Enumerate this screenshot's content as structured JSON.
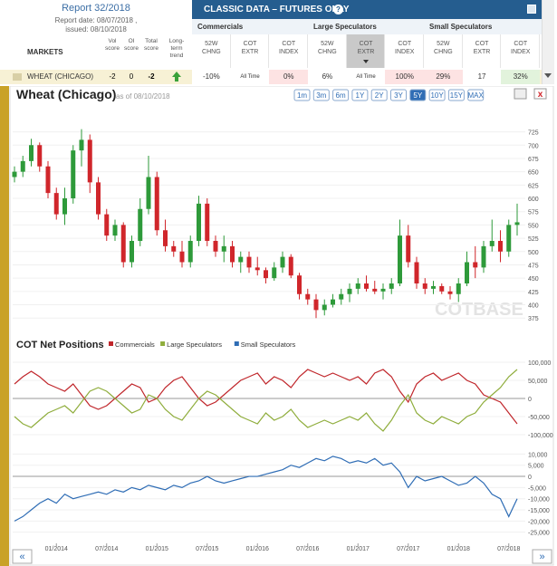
{
  "header": {
    "report": "Report 32/2018",
    "report_date": "Report date: 08/07/2018 ,",
    "issued": "issued: 08/10/2018",
    "markets": "MARKETS",
    "columns": [
      "Vol score",
      "OI score",
      "Total score",
      "Long-term trend"
    ],
    "title": "CLASSIC DATA – FUTURES ONLY",
    "groups": [
      "Commercials",
      "Large Speculators",
      "Small Speculators"
    ],
    "group_columns": [
      "52W CHNG",
      "COT EXTR",
      "COT INDEX"
    ],
    "sorted_column": 4
  },
  "row": {
    "market": "WHEAT (CHICAGO)",
    "scores": [
      -2,
      0,
      -2
    ],
    "cells": [
      "-10%",
      "All Time",
      "0%",
      "6%",
      "All Time",
      "100%",
      "29%",
      "17",
      "32%"
    ],
    "cell_colors": [
      "#ffffff",
      "#ffffff",
      "#fde3e3",
      "#ffffff",
      "#ffffff",
      "#fde3e3",
      "#fde3e3",
      "#ffffff",
      "#e2f3dc"
    ]
  },
  "panel": {
    "title": "Wheat (Chicago)",
    "as_of": "as of 08/10/2018",
    "ranges": [
      "1m",
      "3m",
      "6m",
      "1Y",
      "2Y",
      "3Y",
      "5Y",
      "10Y",
      "15Y",
      "MAX"
    ],
    "selected": 6,
    "watermark": "COTBASE",
    "nav": [
      "«",
      "»"
    ]
  },
  "chart_data": [
    {
      "type": "candlestick",
      "up_color": "#2e9a3a",
      "down_color": "#d0262b",
      "grid": true,
      "x": [
        "08/2013",
        "09/2013",
        "10/2013",
        "11/2013",
        "12/2013",
        "01/2014",
        "02/2014",
        "03/2014",
        "04/2014",
        "05/2014",
        "06/2014",
        "07/2014",
        "08/2014",
        "09/2014",
        "10/2014",
        "11/2014",
        "12/2014",
        "01/2015",
        "02/2015",
        "03/2015",
        "04/2015",
        "05/2015",
        "06/2015",
        "07/2015",
        "08/2015",
        "09/2015",
        "10/2015",
        "11/2015",
        "12/2015",
        "01/2016",
        "02/2016",
        "03/2016",
        "04/2016",
        "05/2016",
        "06/2016",
        "07/2016",
        "08/2016",
        "09/2016",
        "10/2016",
        "11/2016",
        "12/2016",
        "01/2017",
        "02/2017",
        "03/2017",
        "04/2017",
        "05/2017",
        "06/2017",
        "07/2017",
        "08/2017",
        "09/2017",
        "10/2017",
        "11/2017",
        "12/2017",
        "01/2018",
        "02/2018",
        "03/2018",
        "04/2018",
        "05/2018",
        "06/2018",
        "07/2018",
        "08/2018"
      ],
      "open": [
        640,
        650,
        670,
        700,
        660,
        610,
        570,
        600,
        690,
        710,
        630,
        570,
        530,
        550,
        480,
        520,
        580,
        640,
        540,
        510,
        500,
        480,
        520,
        590,
        520,
        500,
        510,
        480,
        490,
        470,
        465,
        450,
        470,
        490,
        455,
        420,
        410,
        390,
        400,
        410,
        420,
        430,
        440,
        430,
        425,
        430,
        440,
        530,
        480,
        440,
        430,
        435,
        425,
        420,
        440,
        480,
        470,
        510,
        520,
        500,
        550
      ],
      "high": [
        660,
        680,
        712,
        705,
        670,
        620,
        620,
        700,
        730,
        720,
        640,
        580,
        560,
        555,
        530,
        600,
        680,
        650,
        560,
        520,
        520,
        530,
        605,
        600,
        530,
        530,
        520,
        500,
        500,
        490,
        470,
        480,
        500,
        495,
        460,
        430,
        420,
        410,
        420,
        430,
        440,
        450,
        455,
        445,
        440,
        450,
        560,
        550,
        490,
        450,
        445,
        440,
        435,
        450,
        500,
        510,
        520,
        560,
        540,
        560,
        590
      ],
      "low": [
        630,
        640,
        660,
        650,
        600,
        560,
        550,
        590,
        660,
        610,
        560,
        520,
        520,
        470,
        470,
        510,
        570,
        530,
        500,
        490,
        470,
        470,
        510,
        510,
        490,
        480,
        470,
        460,
        460,
        455,
        440,
        445,
        460,
        450,
        410,
        400,
        375,
        380,
        395,
        400,
        405,
        420,
        425,
        420,
        410,
        420,
        435,
        470,
        430,
        420,
        420,
        420,
        410,
        405,
        435,
        450,
        460,
        500,
        480,
        490,
        530
      ],
      "close": [
        650,
        670,
        700,
        660,
        610,
        570,
        600,
        690,
        710,
        630,
        570,
        530,
        550,
        480,
        520,
        580,
        640,
        540,
        510,
        500,
        480,
        520,
        590,
        520,
        500,
        510,
        480,
        490,
        470,
        465,
        450,
        470,
        490,
        455,
        420,
        410,
        390,
        400,
        410,
        420,
        430,
        440,
        430,
        425,
        430,
        440,
        530,
        480,
        440,
        430,
        435,
        425,
        420,
        440,
        480,
        470,
        510,
        520,
        500,
        550,
        555
      ],
      "ylim": [
        360,
        760
      ],
      "yticks": [
        375,
        400,
        425,
        450,
        475,
        500,
        525,
        550,
        575,
        600,
        625,
        650,
        675,
        700,
        725
      ]
    },
    {
      "type": "line",
      "title": "COT Net Positions",
      "ylim": [
        -120000,
        120000
      ],
      "yticks": [
        {
          "value": 100000,
          "label": "100,000"
        },
        {
          "value": 50000,
          "label": "50,000"
        },
        0,
        {
          "value": -50000,
          "label": "-50,000"
        },
        {
          "value": -100000,
          "label": "-100,000"
        }
      ],
      "series": [
        {
          "name": "Commercials",
          "color": "#c0262b",
          "values": [
            40000,
            60000,
            75000,
            60000,
            40000,
            30000,
            20000,
            40000,
            10000,
            -20000,
            -30000,
            -20000,
            0,
            20000,
            40000,
            30000,
            -10000,
            0,
            30000,
            50000,
            60000,
            30000,
            0,
            -20000,
            -10000,
            10000,
            30000,
            50000,
            60000,
            70000,
            40000,
            60000,
            50000,
            30000,
            60000,
            80000,
            70000,
            60000,
            70000,
            60000,
            50000,
            60000,
            40000,
            70000,
            80000,
            60000,
            20000,
            -10000,
            40000,
            60000,
            70000,
            50000,
            60000,
            70000,
            50000,
            40000,
            10000,
            0,
            -10000,
            -40000,
            -70000
          ]
        },
        {
          "name": "Large Speculators",
          "color": "#8fad3c",
          "values": [
            -50000,
            -70000,
            -80000,
            -60000,
            -40000,
            -30000,
            -20000,
            -40000,
            -10000,
            20000,
            30000,
            20000,
            0,
            -20000,
            -40000,
            -30000,
            10000,
            0,
            -30000,
            -50000,
            -60000,
            -30000,
            0,
            20000,
            10000,
            -10000,
            -30000,
            -50000,
            -60000,
            -70000,
            -40000,
            -60000,
            -50000,
            -30000,
            -60000,
            -80000,
            -70000,
            -60000,
            -70000,
            -60000,
            -50000,
            -60000,
            -40000,
            -70000,
            -90000,
            -60000,
            -20000,
            10000,
            -40000,
            -60000,
            -70000,
            -50000,
            -60000,
            -70000,
            -50000,
            -40000,
            -10000,
            10000,
            30000,
            60000,
            80000
          ]
        }
      ]
    },
    {
      "type": "line",
      "ylim": [
        -30000,
        13000
      ],
      "yticks": [
        {
          "value": 10000,
          "label": "10,000"
        },
        {
          "value": 5000,
          "label": "5,000"
        },
        0,
        {
          "value": -5000,
          "label": "-5,000"
        },
        {
          "value": -10000,
          "label": "-10,000"
        },
        {
          "value": -15000,
          "label": "-15,000"
        },
        {
          "value": -20000,
          "label": "-20,000"
        },
        {
          "value": -25000,
          "label": "-25,000"
        }
      ],
      "xticks": [
        "01/2014",
        "07/2014",
        "01/2015",
        "07/2015",
        "01/2016",
        "07/2016",
        "01/2017",
        "07/2017",
        "01/2018",
        "07/2018"
      ],
      "series": [
        {
          "name": "Small Speculators",
          "color": "#2f6db5",
          "values": [
            -20000,
            -18000,
            -15000,
            -12000,
            -10000,
            -12000,
            -8000,
            -10000,
            -9000,
            -8000,
            -7000,
            -8000,
            -6000,
            -7000,
            -5000,
            -6000,
            -4000,
            -5000,
            -6000,
            -4000,
            -5000,
            -3000,
            -2000,
            0,
            -2000,
            -3000,
            -2000,
            -1000,
            0,
            0,
            1000,
            2000,
            3000,
            5000,
            4000,
            6000,
            8000,
            7000,
            9000,
            8000,
            6000,
            7000,
            6000,
            8000,
            5000,
            6000,
            2000,
            -5000,
            0,
            -2000,
            -1000,
            0,
            -2000,
            -4000,
            -3000,
            0,
            -3000,
            -8000,
            -10000,
            -18000,
            -10000
          ]
        }
      ]
    }
  ]
}
